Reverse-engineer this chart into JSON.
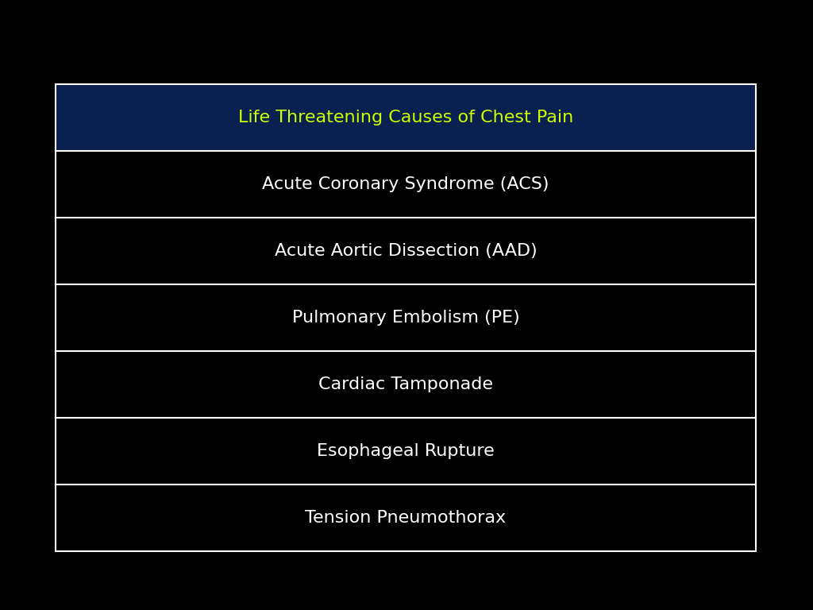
{
  "title": "Life Threatening Causes of Chest Pain",
  "title_color": "#CCFF00",
  "title_bg_color": "#0A2050",
  "rows": [
    "Acute Coronary Syndrome (ACS)",
    "Acute Aortic Dissection (AAD)",
    "Pulmonary Embolism (PE)",
    "Cardiac Tamponade",
    "Esophageal Rupture",
    "Tension Pneumothorax"
  ],
  "row_text_color": "#FFFFFF",
  "row_bg_color": "#000000",
  "background_color": "#000000",
  "border_color": "#FFFFFF",
  "title_fontsize": 16,
  "row_fontsize": 16
}
